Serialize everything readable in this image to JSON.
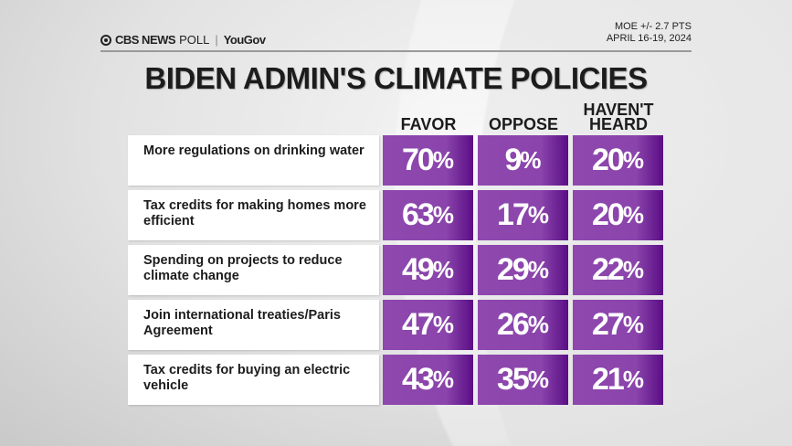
{
  "header": {
    "logo_brand": "CBS NEWS",
    "logo_poll": "POLL",
    "logo_partner": "YouGov",
    "moe": "MOE +/- 2.7 PTS",
    "dates": "APRIL 16-19, 2024"
  },
  "chart_data": {
    "type": "table",
    "title": "BIDEN ADMIN'S CLIMATE POLICIES",
    "columns": [
      "FAVOR",
      "OPPOSE",
      "HAVEN'T HEARD"
    ],
    "colors": {
      "cell": "#8e48ae",
      "cell_dark": "#5b0e86"
    },
    "rows": [
      {
        "label": "More regulations on drinking water",
        "values": [
          "70%",
          "9%",
          "20%"
        ]
      },
      {
        "label": "Tax credits for making homes more efficient",
        "values": [
          "63%",
          "17%",
          "20%"
        ]
      },
      {
        "label": "Spending on projects to reduce climate change",
        "values": [
          "49%",
          "29%",
          "22%"
        ]
      },
      {
        "label": "Join international treaties/Paris Agreement",
        "values": [
          "47%",
          "26%",
          "27%"
        ]
      },
      {
        "label": "Tax credits for buying an electric vehicle",
        "values": [
          "43%",
          "35%",
          "21%"
        ]
      }
    ]
  }
}
